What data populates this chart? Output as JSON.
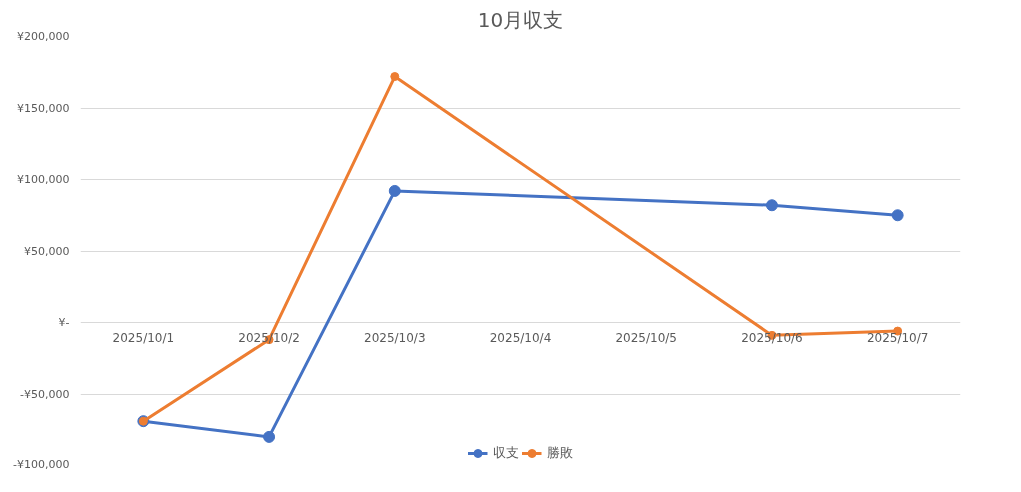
{
  "chart_data": {
    "type": "line",
    "title": "10月収支",
    "categories": [
      "2025/10/1",
      "2025/10/2",
      "2025/10/3",
      "2025/10/4",
      "2025/10/5",
      "2025/10/6",
      "2025/10/7"
    ],
    "series": [
      {
        "name": "収支",
        "color": "#4472c4",
        "values": [
          -69000,
          -80000,
          92000,
          null,
          null,
          82000,
          75000
        ]
      },
      {
        "name": "勝敗",
        "color": "#ed7d31",
        "values": [
          -69000,
          -12000,
          172000,
          null,
          null,
          -9000,
          -6000
        ]
      }
    ],
    "ylim": [
      -100000,
      200000
    ],
    "yticks": [
      {
        "value": -100000,
        "label": "-¥100,000"
      },
      {
        "value": -50000,
        "label": "-¥50,000"
      },
      {
        "value": 0,
        "label": "¥-"
      },
      {
        "value": 50000,
        "label": "¥50,000"
      },
      {
        "value": 100000,
        "label": "¥100,000"
      },
      {
        "value": 150000,
        "label": "¥150,000"
      },
      {
        "value": 200000,
        "label": "¥200,000"
      }
    ],
    "grid": "y",
    "legend": "bottom",
    "marker": "circle",
    "line_style": "solid"
  }
}
